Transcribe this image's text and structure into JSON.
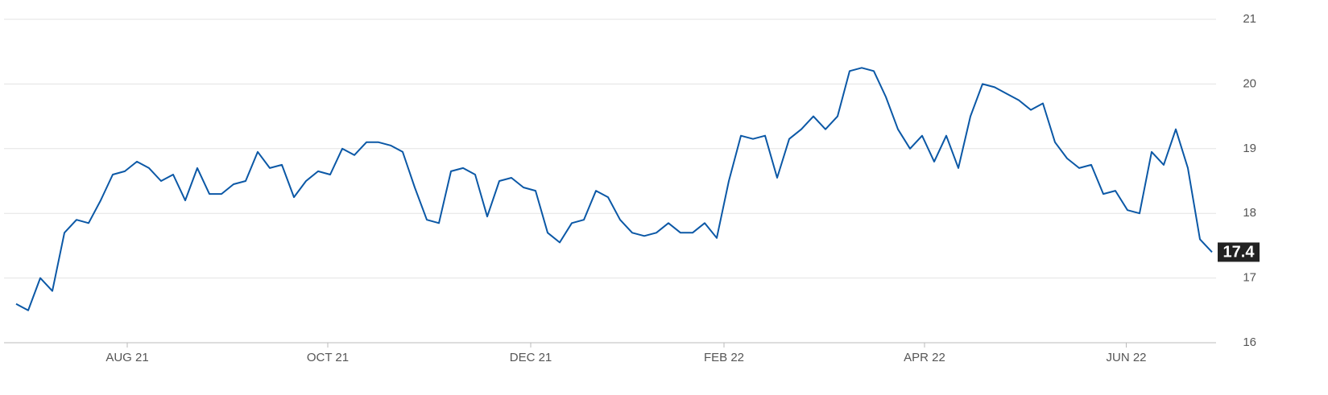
{
  "chart_data": {
    "type": "line",
    "values": [
      16.6,
      16.5,
      17.0,
      16.8,
      17.7,
      17.9,
      17.85,
      18.2,
      18.6,
      18.65,
      18.8,
      18.7,
      18.5,
      18.6,
      18.2,
      18.7,
      18.3,
      18.3,
      18.45,
      18.5,
      18.95,
      18.7,
      18.75,
      18.25,
      18.5,
      18.65,
      18.6,
      19.0,
      18.9,
      19.1,
      19.1,
      19.05,
      18.95,
      18.4,
      17.9,
      17.85,
      18.65,
      18.7,
      18.6,
      17.95,
      18.5,
      18.55,
      18.4,
      18.35,
      17.7,
      17.55,
      17.85,
      17.9,
      18.35,
      18.25,
      17.9,
      17.7,
      17.65,
      17.7,
      17.85,
      17.7,
      17.7,
      17.85,
      17.62,
      18.5,
      19.2,
      19.15,
      19.2,
      18.55,
      19.15,
      19.3,
      19.5,
      19.3,
      19.5,
      20.2,
      20.25,
      20.2,
      19.8,
      19.3,
      19.0,
      19.2,
      18.8,
      19.2,
      18.7,
      19.5,
      20.0,
      19.95,
      19.85,
      19.75,
      19.6,
      19.7,
      19.1,
      18.85,
      18.7,
      18.75,
      18.3,
      18.35,
      18.05,
      18.0,
      18.95,
      18.75,
      19.3,
      18.7,
      17.6,
      17.4
    ],
    "color": "#0b58a6",
    "xlim": [
      0,
      99
    ],
    "xticks": [
      {
        "value": 9.2,
        "label": "AUG 21"
      },
      {
        "value": 25.8,
        "label": "OCT 21"
      },
      {
        "value": 42.6,
        "label": "DEC 21"
      },
      {
        "value": 58.6,
        "label": "FEB 22"
      },
      {
        "value": 75.2,
        "label": "APR 22"
      },
      {
        "value": 91.9,
        "label": "JUN 22"
      }
    ],
    "ylim": [
      16,
      21
    ],
    "yticks": [
      16,
      17,
      18,
      19,
      20,
      21
    ],
    "grid": true
  }
}
